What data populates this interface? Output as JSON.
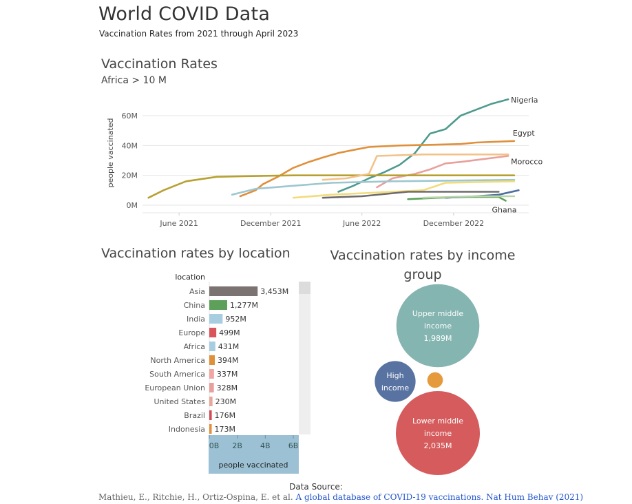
{
  "dashboard": {
    "title": "World COVID Data",
    "subtitle": "Vaccination Rates from 2021 through April 2023"
  },
  "footer": {
    "label": "Data Source:",
    "citation_authors": "Mathieu, E., Ritchie, H., Ortiz-Ospina, E. et al.",
    "citation_link": "A global database of COVID-19 vaccinations. Nat Hum Behav (2021)"
  },
  "colors": {
    "grid": "#e6e6e6",
    "axis_text": "#555555",
    "bar_track": "#eeeeee",
    "axis_band": "#9cc1d4"
  },
  "chart_data": [
    {
      "type": "line",
      "title": "Vaccination Rates",
      "subtitle": "Africa > 10 M",
      "ylabel": "people vaccinated",
      "xlabel": "",
      "x_ticks": [
        "June 2021",
        "December 2021",
        "June 2022",
        "December 2022"
      ],
      "x_tick_dates": [
        "2021-06-01",
        "2021-12-01",
        "2022-06-01",
        "2022-12-01"
      ],
      "x_range": [
        "2021-03-20",
        "2023-04-30"
      ],
      "y_ticks": [
        "0M",
        "20M",
        "40M",
        "60M"
      ],
      "ylim": [
        0,
        75
      ],
      "y_unit": "M",
      "grid": true,
      "series": [
        {
          "name": "Nigeria",
          "color": "#4e9a8f",
          "points": [
            [
              "2022-04-15",
              9
            ],
            [
              "2022-05-15",
              13
            ],
            [
              "2022-06-15",
              18
            ],
            [
              "2022-07-15",
              22
            ],
            [
              "2022-08-15",
              27
            ],
            [
              "2022-09-15",
              35
            ],
            [
              "2022-10-15",
              48
            ],
            [
              "2022-11-15",
              51
            ],
            [
              "2022-12-15",
              60
            ],
            [
              "2023-01-15",
              64
            ],
            [
              "2023-02-15",
              68
            ],
            [
              "2023-03-20",
              71
            ]
          ]
        },
        {
          "name": "Egypt",
          "color": "#e08f3a",
          "points": [
            [
              "2021-10-01",
              6
            ],
            [
              "2021-11-01",
              10
            ],
            [
              "2021-11-15",
              14
            ],
            [
              "2021-12-15",
              19
            ],
            [
              "2022-01-15",
              25
            ],
            [
              "2022-02-15",
              29
            ],
            [
              "2022-03-15",
              32
            ],
            [
              "2022-04-15",
              35
            ],
            [
              "2022-05-15",
              37
            ],
            [
              "2022-06-15",
              39
            ],
            [
              "2022-08-15",
              40
            ],
            [
              "2022-10-15",
              40.5
            ],
            [
              "2022-12-15",
              41
            ],
            [
              "2023-01-15",
              42
            ],
            [
              "2023-04-01",
              43
            ]
          ]
        },
        {
          "name": "Morocco",
          "color": "#e8a09c",
          "points": [
            [
              "2022-07-01",
              12
            ],
            [
              "2022-08-01",
              18
            ],
            [
              "2022-09-15",
              21
            ],
            [
              "2022-10-15",
              24
            ],
            [
              "2022-11-15",
              28
            ],
            [
              "2022-12-15",
              29
            ],
            [
              "2023-02-01",
              31
            ],
            [
              "2023-03-20",
              33
            ]
          ]
        },
        {
          "name": "Ghana",
          "color": "#5aa05a",
          "points": [
            [
              "2022-09-01",
              4
            ],
            [
              "2022-11-01",
              5
            ],
            [
              "2023-01-01",
              5.5
            ],
            [
              "2023-03-01",
              5.5
            ],
            [
              "2023-03-15",
              3
            ]
          ]
        },
        {
          "name": "",
          "color": "#b8a030",
          "points": [
            [
              "2021-04-01",
              5
            ],
            [
              "2021-05-01",
              10
            ],
            [
              "2021-06-15",
              16
            ],
            [
              "2021-08-15",
              19
            ],
            [
              "2021-10-15",
              19.5
            ],
            [
              "2022-01-15",
              20
            ],
            [
              "2022-06-01",
              20
            ],
            [
              "2023-04-01",
              20
            ]
          ]
        },
        {
          "name": "",
          "color": "#f3c18a",
          "points": [
            [
              "2022-03-15",
              17
            ],
            [
              "2022-05-01",
              18
            ],
            [
              "2022-06-15",
              21
            ],
            [
              "2022-07-01",
              33
            ],
            [
              "2022-10-01",
              34
            ],
            [
              "2023-03-20",
              34
            ]
          ]
        },
        {
          "name": "",
          "color": "#9cc7cf",
          "points": [
            [
              "2021-09-15",
              7
            ],
            [
              "2021-11-01",
              11
            ],
            [
              "2022-01-15",
              13
            ],
            [
              "2022-04-01",
              15
            ],
            [
              "2022-08-01",
              16
            ],
            [
              "2023-04-01",
              17
            ]
          ]
        },
        {
          "name": "",
          "color": "#f2dc7a",
          "points": [
            [
              "2022-01-15",
              5
            ],
            [
              "2022-04-01",
              7
            ],
            [
              "2022-08-01",
              9
            ],
            [
              "2022-10-01",
              10
            ],
            [
              "2022-11-15",
              15
            ],
            [
              "2023-04-01",
              16
            ]
          ]
        },
        {
          "name": "",
          "color": "#6e6a6c",
          "points": [
            [
              "2022-03-15",
              5
            ],
            [
              "2022-06-01",
              6
            ],
            [
              "2022-09-01",
              9
            ],
            [
              "2022-12-01",
              9
            ],
            [
              "2023-03-01",
              9
            ]
          ]
        },
        {
          "name": "",
          "color": "#4f6fa3",
          "points": [
            [
              "2022-11-15",
              5
            ],
            [
              "2023-01-15",
              6
            ],
            [
              "2023-03-01",
              7
            ],
            [
              "2023-04-10",
              10
            ]
          ]
        },
        {
          "name": "",
          "color": "#b8d6a5",
          "points": [
            [
              "2022-10-01",
              5
            ],
            [
              "2023-01-15",
              6
            ],
            [
              "2023-04-01",
              6
            ]
          ]
        }
      ]
    },
    {
      "type": "bar",
      "orientation": "horizontal",
      "title": "Vaccination rates by location",
      "category_header": "location",
      "xlabel": "people vaccinated",
      "x_ticks": [
        "0B",
        "2B",
        "4B",
        "6B"
      ],
      "xlim": [
        0,
        6.6
      ],
      "x_unit": "B",
      "categories": [
        "Asia",
        "China",
        "India",
        "Europe",
        "Africa",
        "North America",
        "South America",
        "European Union",
        "United States",
        "Brazil",
        "Indonesia"
      ],
      "values": [
        3.453,
        1.277,
        0.952,
        0.499,
        0.431,
        0.394,
        0.337,
        0.328,
        0.23,
        0.176,
        0.173
      ],
      "value_labels": [
        "3,453M",
        "1,277M",
        "952M",
        "499M",
        "431M",
        "394M",
        "337M",
        "328M",
        "230M",
        "176M",
        "173M"
      ],
      "colors": [
        "#7b7272",
        "#5da05a",
        "#a9cde0",
        "#d9555b",
        "#a9cde0",
        "#e08f3a",
        "#f0a7a4",
        "#e8a09c",
        "#e6a89a",
        "#d14c55",
        "#e08f3a"
      ]
    },
    {
      "type": "bubble",
      "title": "Vaccination rates by income group",
      "bubbles": [
        {
          "label": "Upper middle income",
          "value_label": "1,989M",
          "value": 1989,
          "color": "#84b5b0"
        },
        {
          "label": "Lower middle income",
          "value_label": "2,035M",
          "value": 2035,
          "color": "#d55b5c"
        },
        {
          "label": "High income",
          "value_label": "",
          "value": 480,
          "color": "#5872a1"
        },
        {
          "label": "",
          "value_label": "",
          "value": 70,
          "color": "#e59a3d"
        }
      ]
    }
  ]
}
